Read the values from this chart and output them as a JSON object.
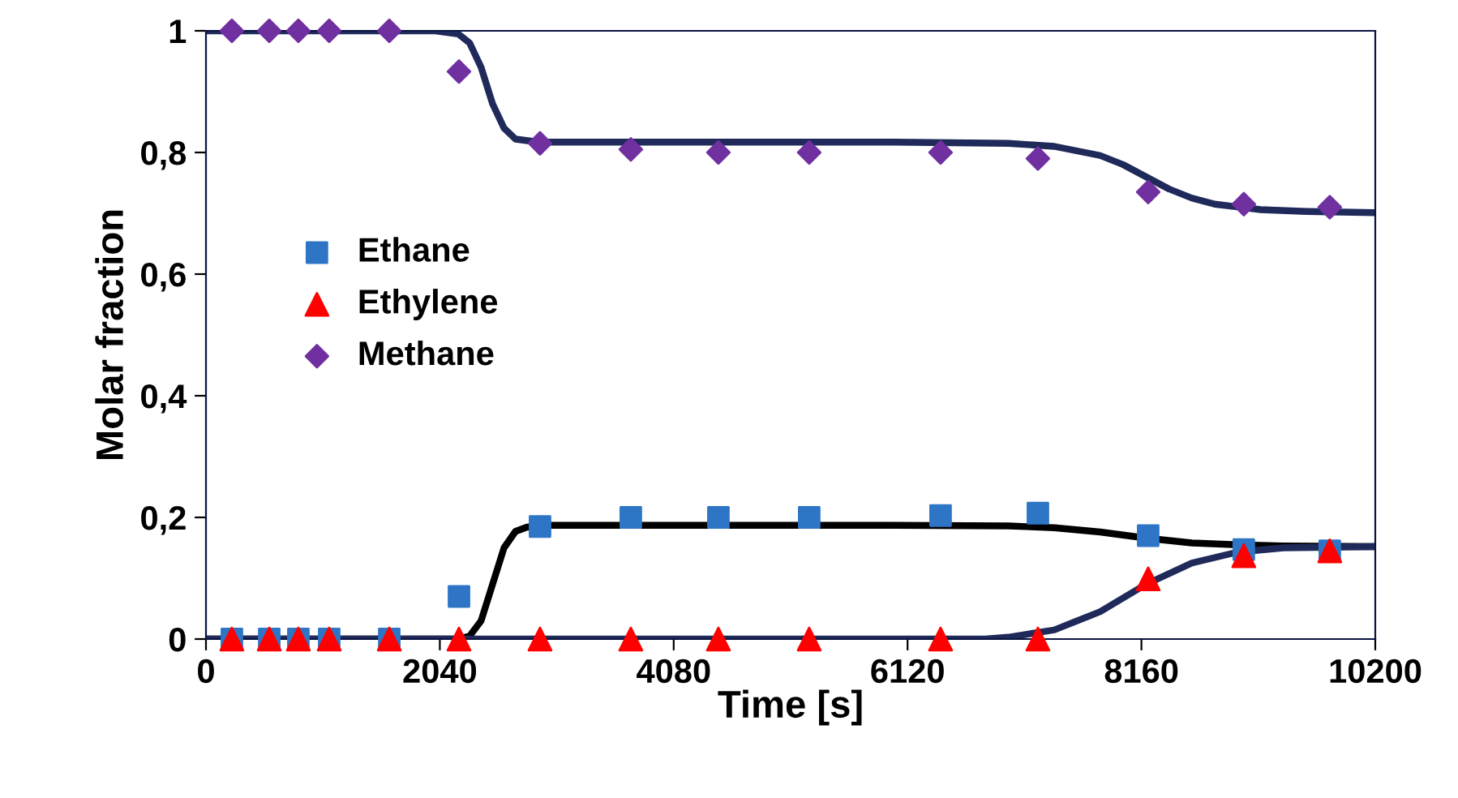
{
  "chart_data": {
    "type": "scatter",
    "xlabel": "Time [s]",
    "ylabel": "Molar fraction",
    "xlim": [
      0,
      10200
    ],
    "xticks": [
      0,
      2040,
      4080,
      6120,
      8160,
      10200
    ],
    "ylim": [
      0,
      1
    ],
    "yticks": [
      0,
      {
        "value": 0.2,
        "label": "0,2"
      },
      {
        "value": 0.4,
        "label": "0,4"
      },
      {
        "value": 0.6,
        "label": "0,6"
      },
      {
        "value": 0.8,
        "label": "0,8"
      },
      1
    ],
    "grid": false,
    "legend": "left",
    "series": [
      {
        "name": "Ethane",
        "marker": "square",
        "color": "#2e75c6",
        "x": [
          226,
          552,
          806,
          1075,
          1599,
          2207,
          2914,
          3706,
          4470,
          5262,
          6408,
          7257,
          8219,
          9053,
          9803
        ],
        "values": [
          0,
          0,
          0,
          0,
          0,
          0.07,
          0.185,
          0.2,
          0.2,
          0.2,
          0.203,
          0.207,
          0.17,
          0.147,
          0.145
        ]
      },
      {
        "name": "Ethylene",
        "marker": "triangle",
        "color": "#ff0000",
        "x": [
          226,
          552,
          806,
          1075,
          1599,
          2207,
          2914,
          3706,
          4470,
          5262,
          6408,
          7257,
          8219,
          9053,
          9803
        ],
        "values": [
          0,
          0,
          0,
          0,
          0,
          0,
          0,
          0,
          0,
          0,
          0,
          0,
          0.099,
          0.137,
          0.145
        ]
      },
      {
        "name": "Methane",
        "marker": "diamond",
        "color": "#7030a0",
        "x": [
          226,
          552,
          806,
          1075,
          1599,
          2207,
          2914,
          3706,
          4470,
          5262,
          6408,
          7257,
          8219,
          9053,
          9803
        ],
        "values": [
          1,
          1,
          1,
          1,
          1,
          0.933,
          0.815,
          0.805,
          0.8,
          0.8,
          0.8,
          0.79,
          0.735,
          0.715,
          0.71
        ]
      },
      {
        "type": "line",
        "color": "#1f2a5a",
        "x": [
          0,
          2000,
          2200,
          2300,
          2400,
          2500,
          2600,
          2700,
          2900,
          3500,
          6000,
          7000,
          7400,
          7800,
          8000,
          8200,
          8400,
          8600,
          8800,
          9200,
          9600,
          10200
        ],
        "values": [
          1,
          1,
          0.995,
          0.98,
          0.94,
          0.88,
          0.84,
          0.822,
          0.817,
          0.817,
          0.817,
          0.815,
          0.81,
          0.795,
          0.78,
          0.76,
          0.74,
          0.725,
          0.715,
          0.706,
          0.703,
          0.701
        ]
      },
      {
        "type": "line",
        "color": "#000000",
        "x": [
          0,
          2200,
          2300,
          2400,
          2500,
          2600,
          2700,
          2800,
          3000,
          6000,
          7000,
          7400,
          7800,
          8200,
          8600,
          9000,
          9400,
          10200
        ],
        "values": [
          0,
          0,
          0.005,
          0.03,
          0.09,
          0.15,
          0.177,
          0.184,
          0.187,
          0.187,
          0.186,
          0.183,
          0.176,
          0.166,
          0.158,
          0.155,
          0.153,
          0.152
        ]
      },
      {
        "type": "line",
        "color": "#1f2a5a",
        "x": [
          0,
          6800,
          7000,
          7400,
          7800,
          8200,
          8600,
          9000,
          9400,
          10200
        ],
        "values": [
          0,
          0,
          0.003,
          0.015,
          0.045,
          0.09,
          0.125,
          0.143,
          0.15,
          0.152
        ]
      }
    ]
  }
}
